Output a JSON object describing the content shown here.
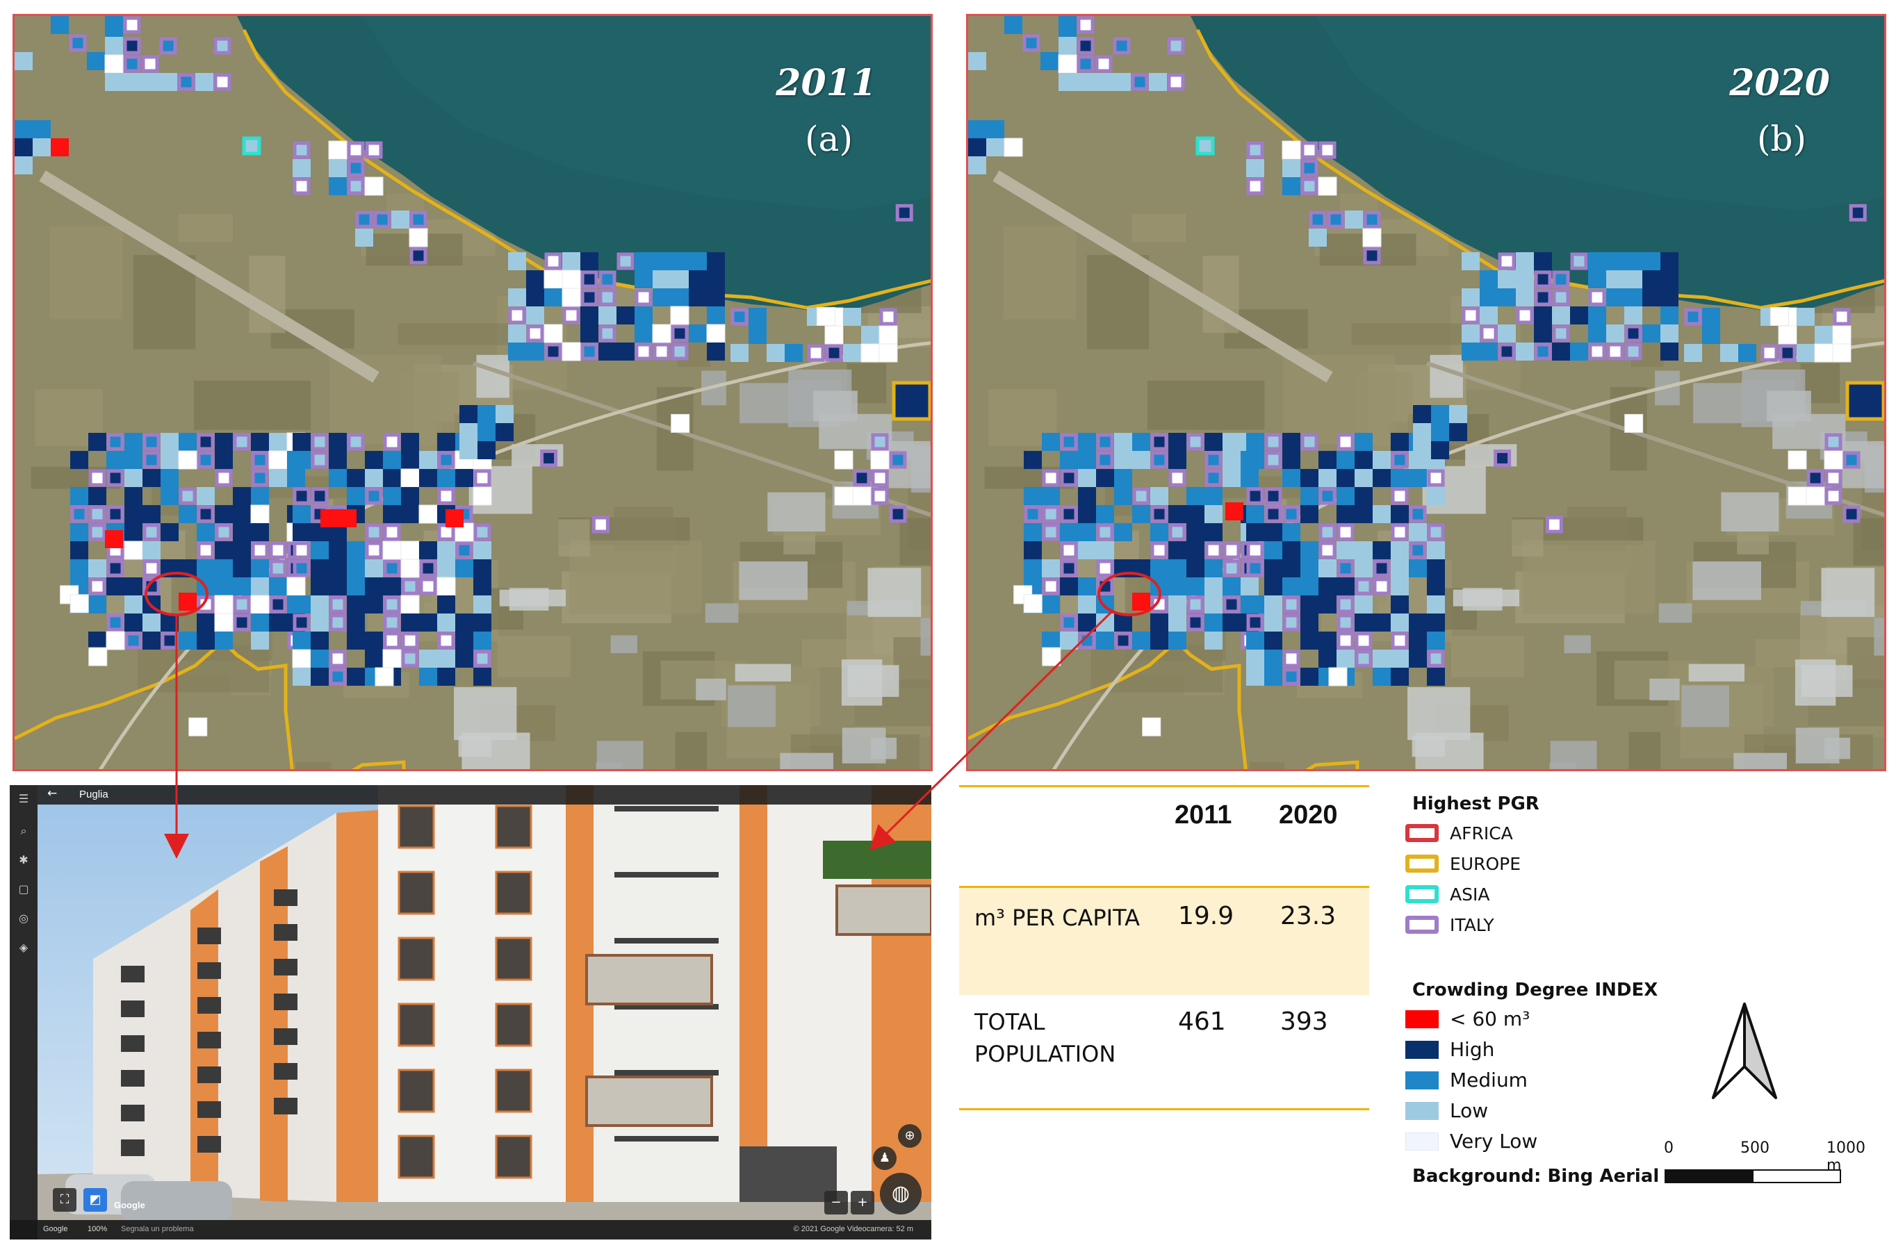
{
  "map_a": {
    "year": "2011",
    "label": "(a)"
  },
  "map_b": {
    "year": "2020",
    "label": "(b)"
  },
  "street_view": {
    "place": "Puglia",
    "google": "Google",
    "zoom": "100%",
    "report": "Segnala un problema",
    "copyright": "© 2021 Google   Videocamera: 52 m",
    "logo": "Google"
  },
  "table": {
    "col_2011": "2011",
    "col_2020": "2020",
    "rows": [
      {
        "label": "m³ PER CAPITA",
        "v2011": "19.9",
        "v2020": "23.3"
      },
      {
        "label": "TOTAL POPULATION",
        "v2011": "461",
        "v2020": "393"
      }
    ]
  },
  "legend": {
    "pgr_title": "Highest PGR",
    "pgr_items": [
      {
        "label": "AFRICA",
        "color": "#d9363e"
      },
      {
        "label": "EUROPE",
        "color": "#e3b21a"
      },
      {
        "label": "ASIA",
        "color": "#2de0d0"
      },
      {
        "label": "ITALY",
        "color": "#a07cc8"
      }
    ],
    "crowding_title": "Crowding Degree INDEX",
    "crowding_items": [
      {
        "label": "< 60 m³",
        "color": "#ff0000"
      },
      {
        "label": "High",
        "color": "#08306b"
      },
      {
        "label": "Medium",
        "color": "#1f86c8"
      },
      {
        "label": "Low",
        "color": "#9ecae1"
      },
      {
        "label": "Very Low",
        "color": "#f1f6fc"
      }
    ],
    "background": "Background: Bing Aerial"
  },
  "scale": {
    "labels": [
      "0",
      "500",
      "1000 m"
    ]
  }
}
